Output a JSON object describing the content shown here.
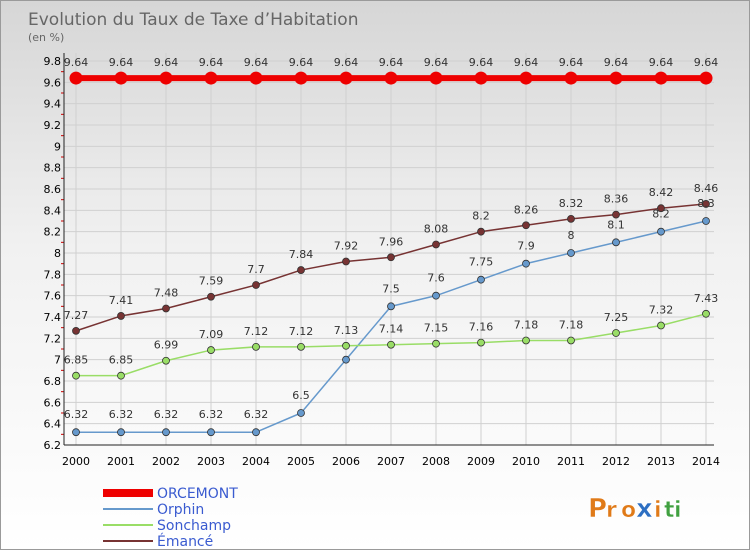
{
  "chart_data": {
    "type": "line",
    "title": "Evolution du Taux de Taxe d’Habitation",
    "subtitle": "(en %)",
    "categories": [
      "2000",
      "2001",
      "2002",
      "2003",
      "2004",
      "2005",
      "2006",
      "2007",
      "2008",
      "2009",
      "2010",
      "2011",
      "2012",
      "2013",
      "2014"
    ],
    "ylim": [
      6.2,
      9.8
    ],
    "yticks": [
      "6.2",
      "6.4",
      "6.6",
      "6.8",
      "7",
      "7.2",
      "7.4",
      "7.6",
      "7.8",
      "8",
      "8.2",
      "8.4",
      "8.6",
      "8.8",
      "9",
      "9.2",
      "9.4",
      "9.6",
      "9.8"
    ],
    "grid": true,
    "legend_position": "bottom-left",
    "series": [
      {
        "name": "ORCEMONT",
        "color": "#ee0000",
        "values": [
          9.64,
          9.64,
          9.64,
          9.64,
          9.64,
          9.64,
          9.64,
          9.64,
          9.64,
          9.64,
          9.64,
          9.64,
          9.64,
          9.64,
          9.64
        ],
        "labels": [
          "9.64",
          "9.64",
          "9.64",
          "9.64",
          "9.64",
          "9.64",
          "9.64",
          "9.64",
          "9.64",
          "9.64",
          "9.64",
          "9.64",
          "9.64",
          "9.64",
          "9.64"
        ]
      },
      {
        "name": "Orphin",
        "color": "#6699cc",
        "values": [
          6.32,
          6.32,
          6.32,
          6.32,
          6.32,
          6.5,
          7.0,
          7.5,
          7.6,
          7.75,
          7.9,
          8.0,
          8.1,
          8.2,
          8.3
        ],
        "labels": [
          "6.32",
          "6.32",
          "6.32",
          "6.32",
          "6.32",
          "6.5",
          "",
          "7.5",
          "7.6",
          "7.75",
          "7.9",
          "8",
          "8.1",
          "8.2",
          "8.3"
        ]
      },
      {
        "name": "Sonchamp",
        "color": "#99dd66",
        "values": [
          6.85,
          6.85,
          6.99,
          7.09,
          7.12,
          7.12,
          7.13,
          7.14,
          7.15,
          7.16,
          7.18,
          7.18,
          7.25,
          7.32,
          7.43
        ],
        "labels": [
          "6.85",
          "6.85",
          "6.99",
          "7.09",
          "7.12",
          "7.12",
          "7.13",
          "7.14",
          "7.15",
          "7.16",
          "7.18",
          "7.18",
          "7.25",
          "7.32",
          "7.43"
        ]
      },
      {
        "name": "Émancé",
        "color": "#773333",
        "values": [
          7.27,
          7.41,
          7.48,
          7.59,
          7.7,
          7.84,
          7.92,
          7.96,
          8.08,
          8.2,
          8.26,
          8.32,
          8.36,
          8.42,
          8.46
        ],
        "labels": [
          "7.27",
          "7.41",
          "7.48",
          "7.59",
          "7.7",
          "7.84",
          "7.92",
          "7.96",
          "8.08",
          "8.2",
          "8.26",
          "8.32",
          "8.36",
          "8.42",
          "8.46"
        ]
      }
    ]
  },
  "logo": {
    "text": "Proxiti",
    "colors": [
      "#e8a020",
      "#e86020",
      "#3070c0",
      "#40a040"
    ]
  }
}
